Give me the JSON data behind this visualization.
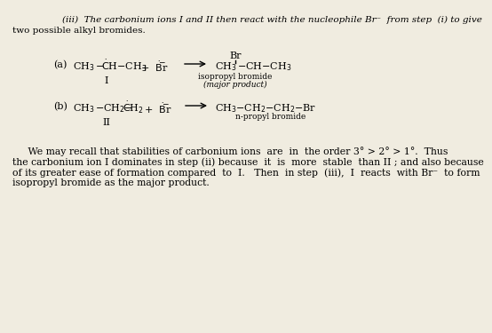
{
  "background_color": "#f0ece0",
  "font_size_header": 7.5,
  "font_size_reaction": 8.0,
  "font_size_label": 7.5,
  "font_size_small": 6.5,
  "font_size_para": 7.8,
  "header_italic": "(iii)  The carbonium ions I and II then react with the nucleophile Br⁻  from step  (i) to give",
  "header_line2": "two possible alkyl bromides.",
  "roman_a": "I",
  "roman_b": "II",
  "para_line1": "     We may recall that stabilities of carbonium ions  are  in  the order 3° > 2° > 1°.  Thus",
  "para_line2": "the carbonium ion I dominates in step (ii) because  it  is  more  stable  than II ; and also because",
  "para_line3": "of its greater ease of formation compared  to  I.   Then  in step  (iii),  I  reacts  with Br⁻  to form",
  "para_line4": "isopropyl bromide as the major product."
}
